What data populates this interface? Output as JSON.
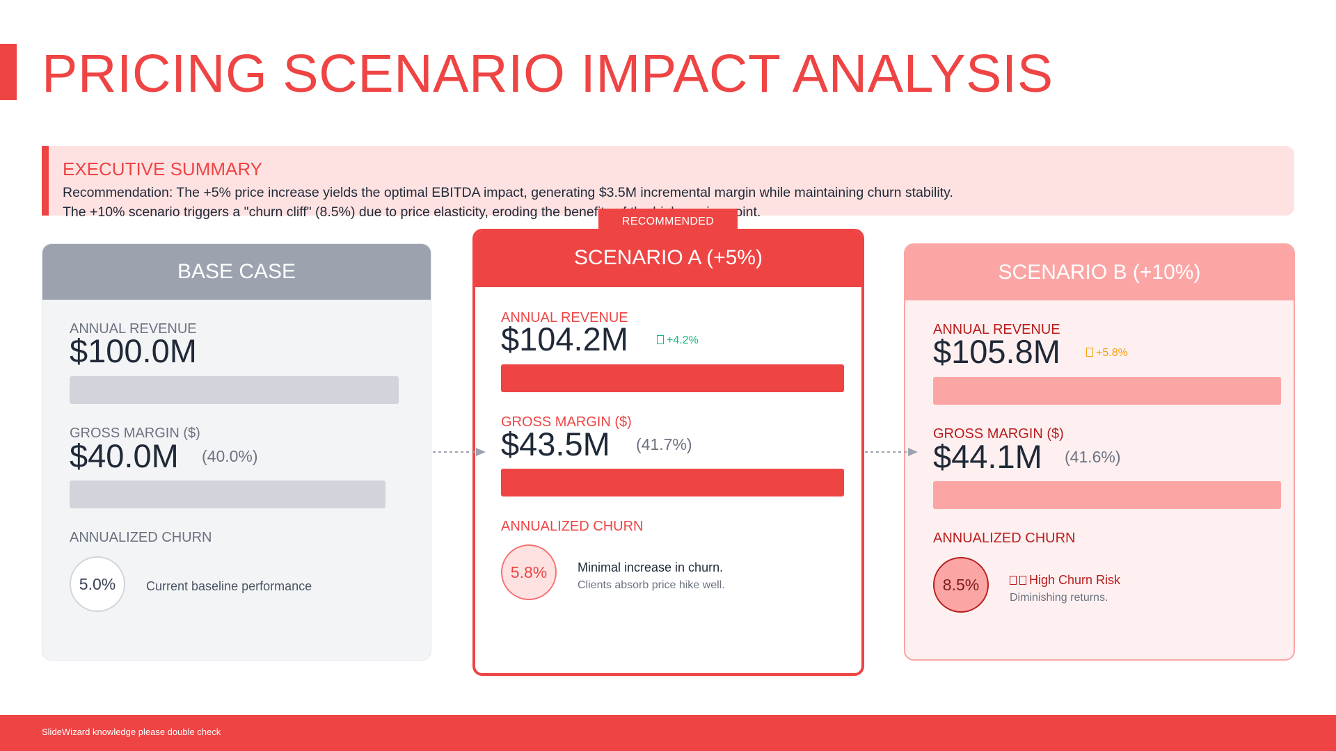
{
  "title": "PRICING SCENARIO IMPACT ANALYSIS",
  "summary": {
    "heading": "EXECUTIVE SUMMARY",
    "line1": "Recommendation: The +5% price increase yields the optimal EBITDA impact, generating $3.5M incremental margin while maintaining churn stability.",
    "line2": "The +10% scenario triggers a \"churn cliff\" (8.5%) due to price elasticity, eroding the benefits of the higher price point."
  },
  "recommended_badge": "RECOMMENDED",
  "labels": {
    "revenue": "ANNUAL REVENUE",
    "margin": "GROSS MARGIN ($)",
    "churn": "ANNUALIZED CHURN"
  },
  "scenarios": {
    "base": {
      "name": "BASE CASE",
      "revenue": "$100.0M",
      "revenue_bar_fraction": 0.945,
      "margin": "$40.0M",
      "margin_pct": "(40.0%)",
      "margin_bar_fraction": 0.907,
      "churn": "5.0%",
      "note": "Current baseline performance"
    },
    "a": {
      "name": "SCENARIO A (+5%)",
      "revenue": "$104.2M",
      "revenue_delta": "+4.2%",
      "revenue_bar_fraction": 0.985,
      "margin": "$43.5M",
      "margin_pct": "(41.7%)",
      "margin_bar_fraction": 0.986,
      "churn": "5.8%",
      "note": "Minimal increase in churn.",
      "subnote": "Clients absorb price hike well."
    },
    "b": {
      "name": "SCENARIO B (+10%)",
      "revenue": "$105.8M",
      "revenue_delta": "+5.8%",
      "revenue_bar_fraction": 1.0,
      "margin": "$44.1M",
      "margin_pct": "(41.6%)",
      "margin_bar_fraction": 1.0,
      "churn": "8.5%",
      "note": "High Churn Risk",
      "subnote": "Diminishing returns."
    }
  },
  "colors": {
    "accent": "#ef4444",
    "positive": "#10b981",
    "warning": "#f59e0b"
  },
  "footer": "SlideWizard knowledge please double check"
}
